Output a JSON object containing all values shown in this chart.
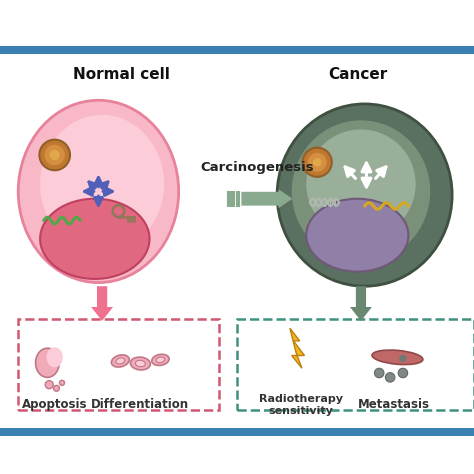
{
  "bg_color": "#ffffff",
  "border_color": "#4a90b8",
  "title_left": "Normal cell",
  "title_right": "Cancer",
  "carcinogenesis_label": "Carcinogenesis",
  "left_label1": "Apoptosis",
  "left_label2": "Differentiation",
  "right_label1": "Radiotherapy\nsensitivity",
  "right_label2": "Metastasis",
  "normal_cell_color": "#f8b8c8",
  "normal_cell_outer": "#e8829a",
  "normal_cell_inner": "#f0a0ba",
  "normal_nucleus_color": "#e06880",
  "normal_nucleus_outer": "#c04060",
  "cancer_cell_dark": "#5a7060",
  "cancer_cell_mid": "#7a9078",
  "cancer_cell_light": "#9aaf9a",
  "cancer_nucleus_color": "#9080a8",
  "cancer_nucleus_outer": "#705878",
  "arrow_pink": "#f07090",
  "arrow_green": "#6a8870",
  "carcinogenesis_arrow_color": "#8aaa90",
  "blue_arrow": "#5060b8",
  "white_arrow": "#ffffff",
  "dashed_pink": "#d05870",
  "dashed_teal": "#409080",
  "nucleolus_outer": "#c07830",
  "nucleolus_inner": "#d49040",
  "nucleolus_core": "#e0a848",
  "green_rna": "#50a848",
  "yellow_rna": "#d4a820",
  "dna_color": "#b0b8b0",
  "key_color": "#907858",
  "apoptosis_fill": "#f0aab8",
  "apoptosis_edge": "#c07888",
  "bolt_fill": "#f0b820",
  "bolt_edge": "#c08010",
  "vessel_fill": "#c06868",
  "vessel_edge": "#904848",
  "meta_cell_fill": "#808888",
  "border_blue": "#3a80b0"
}
